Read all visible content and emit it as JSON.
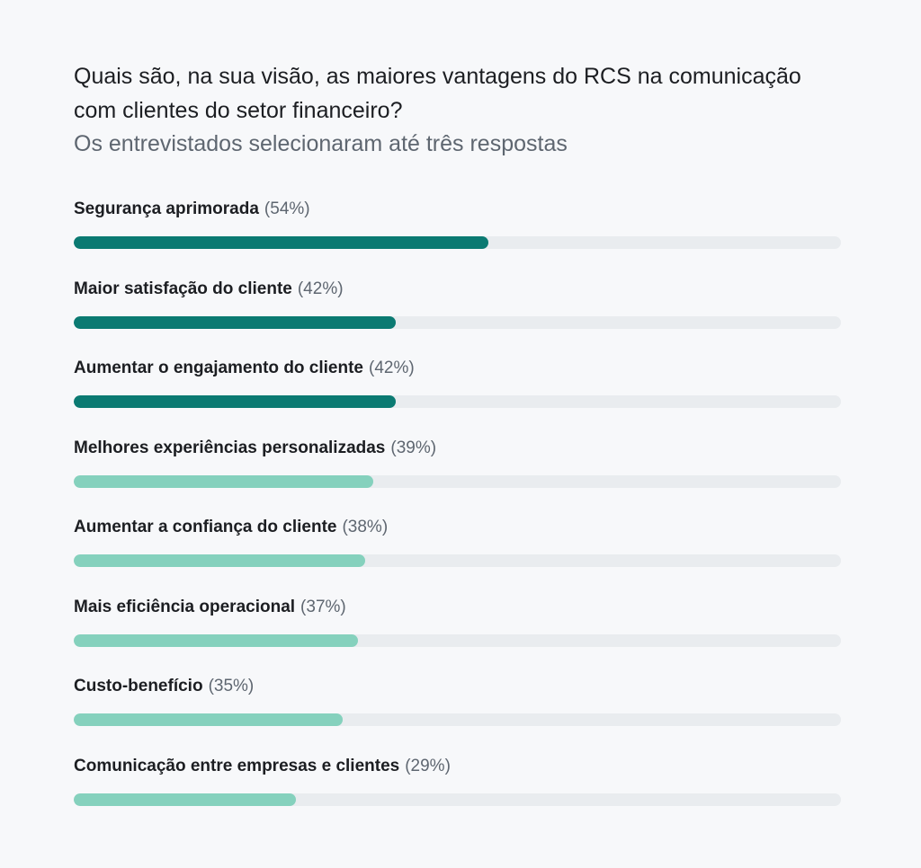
{
  "chart_data": {
    "type": "bar",
    "orientation": "horizontal",
    "title": "Quais são, na sua visão, as maiores vantagens do RCS na comunicação com clientes do setor financeiro?",
    "subtitle": "Os entrevistados selecionaram até três respostas",
    "xlim": [
      0,
      100
    ],
    "grid": false,
    "legend": "none",
    "categories": [
      "Segurança aprimorada",
      "Maior satisfação do cliente",
      "Aumentar o engajamento do cliente",
      "Melhores experiências personalizadas",
      "Aumentar a confiança do cliente",
      "Mais eficiência operacional",
      "Custo-benefício",
      "Comunicação entre empresas e clientes"
    ],
    "values": [
      54,
      42,
      42,
      39,
      38,
      37,
      35,
      29
    ],
    "value_labels": [
      "(54%)",
      "(42%)",
      "(42%)",
      "(39%)",
      "(38%)",
      "(37%)",
      "(35%)",
      "(29%)"
    ],
    "highlighted_count": 3
  },
  "colors": {
    "highlight": "#0b7a72",
    "normal": "#85d1bd",
    "track": "#e9ecef",
    "background": "#f7f8fa"
  }
}
